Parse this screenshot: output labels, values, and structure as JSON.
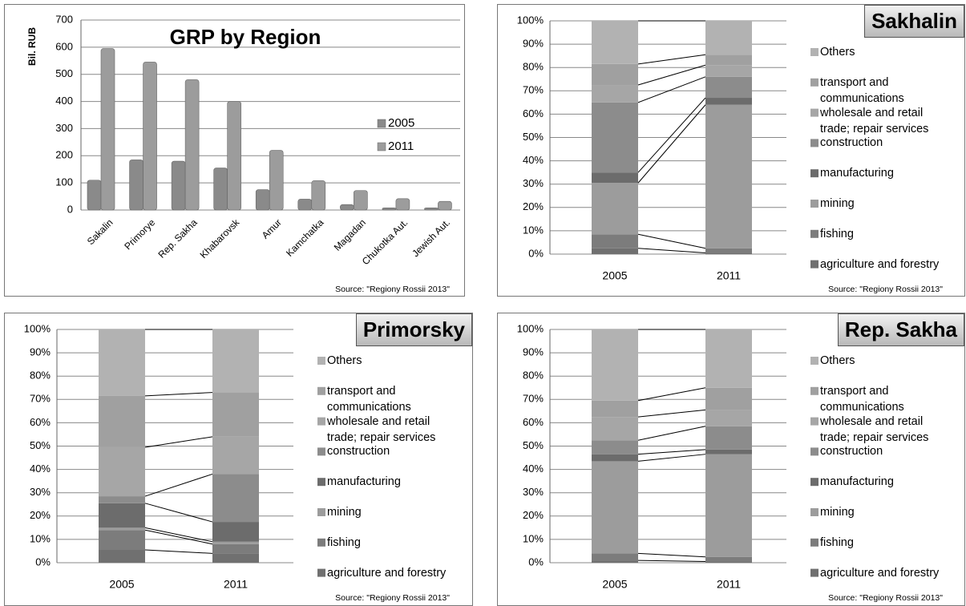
{
  "chart_data": [
    {
      "type": "bar",
      "title": "GRP by Region",
      "y_label": "Bil. RUB",
      "source": "Source: \"Regiony Rossii 2013\"",
      "categories": [
        "Sakalin",
        "Primorye",
        "Rep. Sakha",
        "Khabarovsk",
        "Amur",
        "Kamchatka",
        "Magadan",
        "Chukotka Aut.",
        "Jewish Aut."
      ],
      "series": [
        {
          "name": "2005",
          "color": "#8a8a8a",
          "values": [
            110,
            185,
            180,
            155,
            75,
            40,
            20,
            8,
            8
          ]
        },
        {
          "name": "2011",
          "color": "#9c9c9c",
          "values": [
            595,
            545,
            480,
            400,
            220,
            108,
            72,
            42,
            32
          ]
        }
      ],
      "ylim": [
        0,
        700
      ],
      "yticks": [
        0,
        100,
        200,
        300,
        400,
        500,
        600,
        700
      ],
      "grid": true
    },
    {
      "type": "stacked_percent",
      "title": "Sakhalin",
      "source": "Source: \"Regiony Rossii 2013\"",
      "categories": [
        "2005",
        "2011"
      ],
      "series": [
        {
          "name": "agriculture and forestry",
          "color": "#707070",
          "values": [
            2.5,
            0.5
          ]
        },
        {
          "name": "fishing",
          "color": "#7c7c7c",
          "values": [
            6,
            2
          ]
        },
        {
          "name": "mining",
          "color": "#9c9c9c",
          "values": [
            22,
            61.5
          ]
        },
        {
          "name": "manufacturing",
          "color": "#6c6c6c",
          "values": [
            4.5,
            3
          ]
        },
        {
          "name": "construction",
          "color": "#8c8c8c",
          "values": [
            30,
            9
          ]
        },
        {
          "name": "wholesale and retail trade; repair services",
          "color": "#a6a6a6",
          "values": [
            7.5,
            5
          ]
        },
        {
          "name": "transport and communications",
          "color": "#a0a0a0",
          "values": [
            9,
            4.5
          ]
        },
        {
          "name": "Others",
          "color": "#b2b2b2",
          "values": [
            18.5,
            14.5
          ]
        }
      ],
      "ylim": [
        0,
        100
      ],
      "yticks": [
        {
          "value": 0,
          "label": "0%"
        },
        {
          "value": 10,
          "label": "10%"
        },
        {
          "value": 20,
          "label": "20%"
        },
        {
          "value": 30,
          "label": "30%"
        },
        {
          "value": 40,
          "label": "40%"
        },
        {
          "value": 50,
          "label": "50%"
        },
        {
          "value": 60,
          "label": "60%"
        },
        {
          "value": 70,
          "label": "70%"
        },
        {
          "value": 80,
          "label": "80%"
        },
        {
          "value": 90,
          "label": "90%"
        },
        {
          "value": 100,
          "label": "100%"
        }
      ],
      "grid": true
    },
    {
      "type": "stacked_percent",
      "title": "Primorsky",
      "source": "Source: \"Regiony Rossii 2013\"",
      "categories": [
        "2005",
        "2011"
      ],
      "series": [
        {
          "name": "agriculture and forestry",
          "color": "#707070",
          "values": [
            5.5,
            4
          ]
        },
        {
          "name": "fishing",
          "color": "#7c7c7c",
          "values": [
            8.5,
            4
          ]
        },
        {
          "name": "mining",
          "color": "#9c9c9c",
          "values": [
            1,
            1
          ]
        },
        {
          "name": "manufacturing",
          "color": "#6c6c6c",
          "values": [
            10.5,
            8.5
          ]
        },
        {
          "name": "construction",
          "color": "#8c8c8c",
          "values": [
            3,
            20.5
          ]
        },
        {
          "name": "wholesale and retail trade; repair services",
          "color": "#a6a6a6",
          "values": [
            21,
            16
          ]
        },
        {
          "name": "transport and communications",
          "color": "#a0a0a0",
          "values": [
            22,
            19
          ]
        },
        {
          "name": "Others",
          "color": "#b2b2b2",
          "values": [
            28.5,
            27
          ]
        }
      ],
      "ylim": [
        0,
        100
      ],
      "yticks": [
        {
          "value": 0,
          "label": "0%"
        },
        {
          "value": 10,
          "label": "10%"
        },
        {
          "value": 20,
          "label": "20%"
        },
        {
          "value": 30,
          "label": "30%"
        },
        {
          "value": 40,
          "label": "40%"
        },
        {
          "value": 50,
          "label": "50%"
        },
        {
          "value": 60,
          "label": "60%"
        },
        {
          "value": 70,
          "label": "70%"
        },
        {
          "value": 80,
          "label": "80%"
        },
        {
          "value": 90,
          "label": "90%"
        },
        {
          "value": 100,
          "label": "100%"
        }
      ],
      "grid": true
    },
    {
      "type": "stacked_percent",
      "title": "Rep. Sakha",
      "source": "Source: \"Regiony Rossii 2013\"",
      "categories": [
        "2005",
        "2011"
      ],
      "series": [
        {
          "name": "agriculture and forestry",
          "color": "#707070",
          "values": [
            1,
            0.5
          ]
        },
        {
          "name": "fishing",
          "color": "#7c7c7c",
          "values": [
            3,
            2
          ]
        },
        {
          "name": "mining",
          "color": "#9c9c9c",
          "values": [
            39.5,
            44
          ]
        },
        {
          "name": "manufacturing",
          "color": "#6c6c6c",
          "values": [
            3,
            2
          ]
        },
        {
          "name": "construction",
          "color": "#8c8c8c",
          "values": [
            6,
            10
          ]
        },
        {
          "name": "wholesale and retail trade; repair services",
          "color": "#a6a6a6",
          "values": [
            10,
            7
          ]
        },
        {
          "name": "transport and communications",
          "color": "#a0a0a0",
          "values": [
            7,
            9.5
          ]
        },
        {
          "name": "Others",
          "color": "#b2b2b2",
          "values": [
            30.5,
            25
          ]
        }
      ],
      "ylim": [
        0,
        100
      ],
      "yticks": [
        {
          "value": 0,
          "label": "0%"
        },
        {
          "value": 10,
          "label": "10%"
        },
        {
          "value": 20,
          "label": "20%"
        },
        {
          "value": 30,
          "label": "30%"
        },
        {
          "value": 40,
          "label": "40%"
        },
        {
          "value": 50,
          "label": "50%"
        },
        {
          "value": 60,
          "label": "60%"
        },
        {
          "value": 70,
          "label": "70%"
        },
        {
          "value": 80,
          "label": "80%"
        },
        {
          "value": 90,
          "label": "90%"
        },
        {
          "value": 100,
          "label": "100%"
        }
      ],
      "grid": true
    }
  ]
}
